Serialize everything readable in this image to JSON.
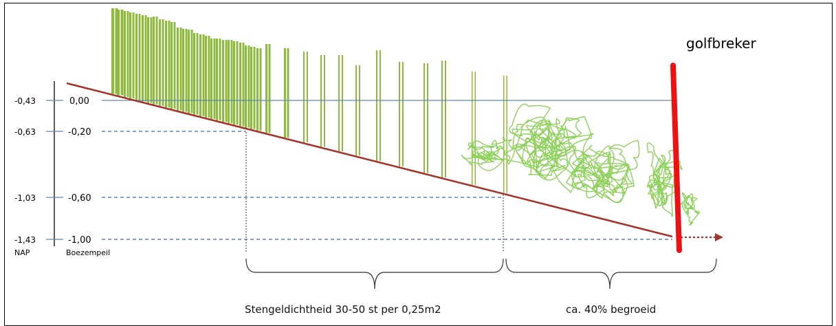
{
  "nap_levels": [
    "-0,43",
    "-0,63",
    "-1,03",
    "-1,43"
  ],
  "nap_label": "NAP",
  "boezem_levels": [
    "0,00",
    "-0,20",
    "-0,60",
    "-1,00"
  ],
  "boezem_label": "Boezempeil",
  "golfbreker_label": "golfbreker",
  "caption_left": "Stengeldichtheid 30-50 st per 0,25m2",
  "caption_right": "ca. 40% begroeid",
  "colors": {
    "reed": "#8dbb3c",
    "tangle": "#8dd05a",
    "slope": "#a3342b",
    "water_line": "#5b86b8",
    "dashed": "#3c64b4",
    "golfbreker": "#ee1111"
  }
}
